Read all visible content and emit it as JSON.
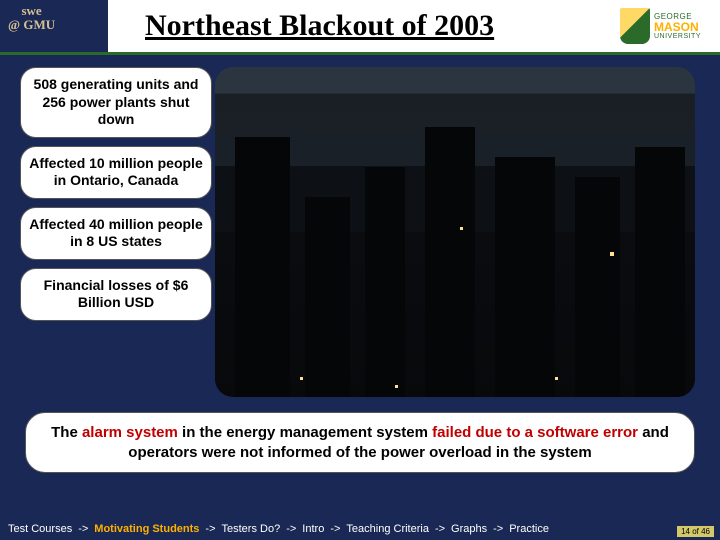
{
  "header": {
    "logo_left_line1": "swe",
    "logo_left_line2": "@ GMU",
    "title": "Northeast Blackout of 2003",
    "mason": {
      "g": "GEORGE",
      "m": "MASON",
      "u": "UNIVERSITY"
    }
  },
  "facts": [
    "508 generating units and 256 power plants shut down",
    "Affected 10 million people in Ontario, Canada",
    "Affected 40 million people in 8 US states",
    "Financial losses of $6 Billion USD"
  ],
  "bottom": {
    "pre": "The ",
    "r1": "alarm system",
    "mid1": " in the energy management system ",
    "r2": "failed due to a software error",
    "post": " and operators were not informed of the power overload in the system"
  },
  "nav": {
    "items": [
      "Test Courses",
      "Motivating Students",
      "Testers Do?",
      "Intro",
      "Teaching Criteria",
      "Graphs",
      "Practice"
    ],
    "active_index": 1,
    "sep": "->"
  },
  "page": {
    "current": "14",
    "total": "46",
    "sep": " of "
  },
  "colors": {
    "background": "#1a2855",
    "accent_green": "#2a6b2a",
    "accent_gold": "#ffb000",
    "highlight_red": "#c00000"
  }
}
